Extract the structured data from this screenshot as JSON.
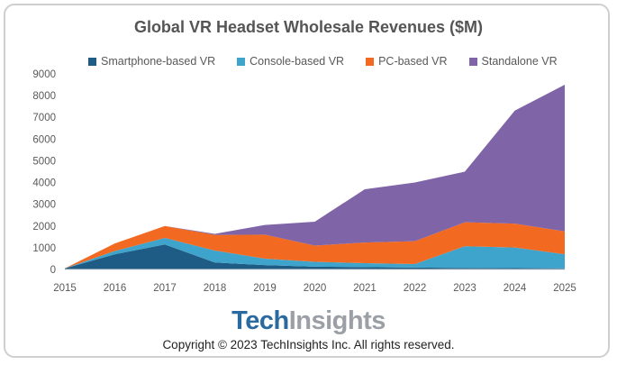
{
  "logo": {
    "part1": "Tech",
    "part2": "Insights"
  },
  "copyright": "Copyright © 2023 TechInsights Inc.  All rights reserved.",
  "chart_data": {
    "type": "area",
    "stacked": true,
    "title": "Global VR Headset Wholesale Revenues ($M)",
    "xlabel": "",
    "ylabel": "",
    "x": [
      "2015",
      "2016",
      "2017",
      "2018",
      "2019",
      "2020",
      "2021",
      "2022",
      "2023",
      "2024",
      "2025"
    ],
    "ylim": [
      0,
      9000
    ],
    "yticks": [
      0,
      1000,
      2000,
      3000,
      4000,
      5000,
      6000,
      7000,
      8000,
      9000
    ],
    "grid": false,
    "legend_position": "top",
    "series": [
      {
        "name": "Smartphone-based VR",
        "color": "#1f5c85",
        "values": [
          50,
          700,
          1150,
          320,
          200,
          130,
          110,
          90,
          70,
          60,
          50
        ]
      },
      {
        "name": "Console-based VR",
        "color": "#3fa4cc",
        "values": [
          0,
          150,
          300,
          550,
          300,
          220,
          180,
          160,
          1000,
          950,
          650
        ]
      },
      {
        "name": "PC-based VR",
        "color": "#f26a21",
        "values": [
          0,
          350,
          550,
          720,
          1100,
          750,
          950,
          1050,
          1100,
          1100,
          1050
        ]
      },
      {
        "name": "Standalone VR",
        "color": "#8064a8",
        "values": [
          0,
          0,
          0,
          50,
          450,
          1100,
          2450,
          2700,
          2330,
          5200,
          6750
        ]
      }
    ]
  }
}
